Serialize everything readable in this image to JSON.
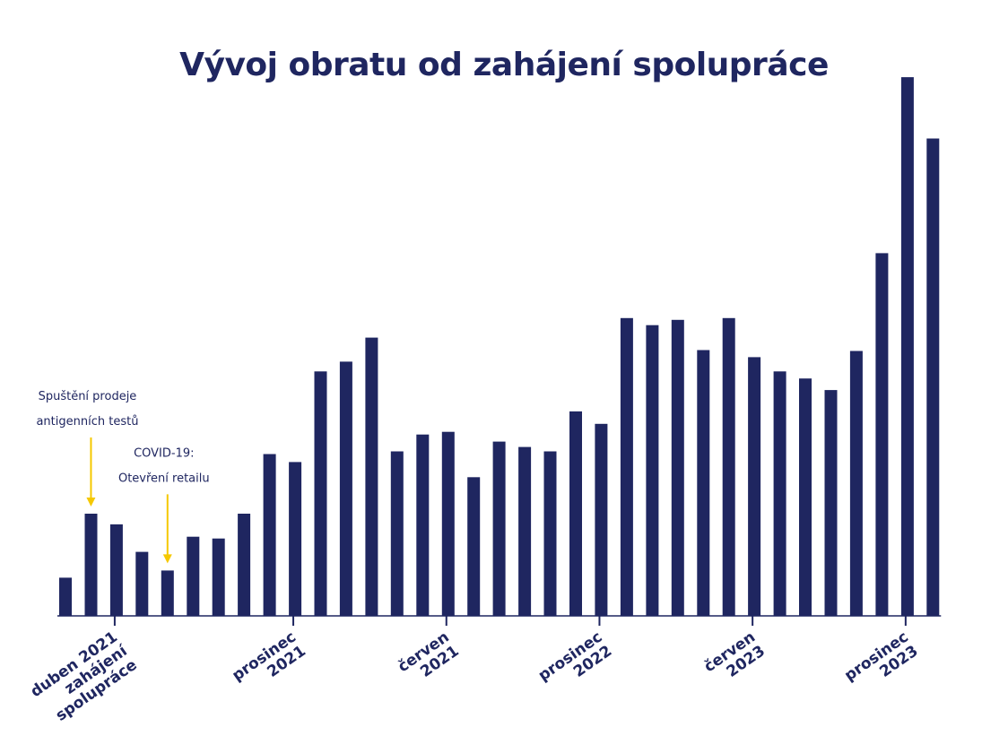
{
  "colors": {
    "bar": "#1f2660",
    "annotation_arrow": "#f5c800",
    "text": "#1f2660"
  },
  "chart_data": {
    "type": "bar",
    "title": "Vývoj obratu od zahájení spolupráce",
    "xlabel": "",
    "ylabel": "",
    "ylim": [
      0,
      60
    ],
    "grid": false,
    "legend": "none",
    "x_ticks": [
      {
        "index": 2,
        "lines": [
          "duben 2021",
          "zahájení",
          "spolupráce"
        ]
      },
      {
        "index": 9,
        "lines": [
          "prosinec",
          "2021"
        ]
      },
      {
        "index": 15,
        "lines": [
          "červen",
          "2021"
        ]
      },
      {
        "index": 21,
        "lines": [
          "prosinec",
          "2022"
        ]
      },
      {
        "index": 27,
        "lines": [
          "červen",
          "2023"
        ]
      },
      {
        "index": 33,
        "lines": [
          "prosinec",
          "2023"
        ]
      }
    ],
    "values": [
      4.3,
      11.5,
      10.3,
      7.2,
      5.1,
      8.9,
      8.7,
      11.5,
      18.2,
      17.3,
      27.5,
      28.6,
      31.3,
      18.5,
      20.4,
      20.7,
      15.6,
      19.6,
      19.0,
      18.5,
      23.0,
      21.6,
      33.5,
      32.7,
      33.3,
      29.9,
      33.5,
      29.1,
      27.5,
      26.7,
      25.4,
      29.8,
      40.8,
      60.6,
      53.7
    ],
    "annotations": [
      {
        "bar_index": 1,
        "lines": [
          "Spuštění prodeje",
          "antigenních testů"
        ]
      },
      {
        "bar_index": 4,
        "lines": [
          "COVID-19:",
          "Otevření retailu"
        ]
      }
    ]
  }
}
